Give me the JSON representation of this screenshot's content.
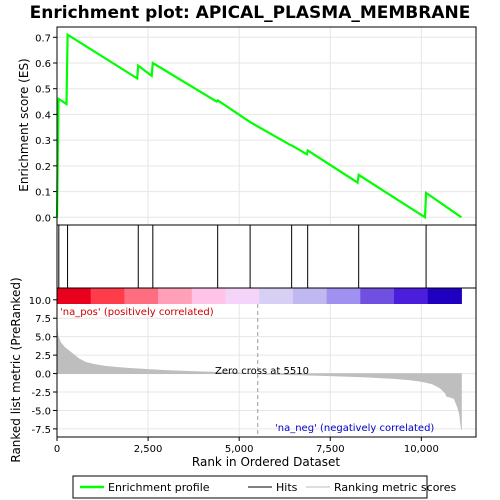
{
  "chart_data": {
    "type": "line",
    "title": "Enrichment plot: APICAL_PLASMA_MEMBRANE",
    "top_panel": {
      "ylabel": "Enrichment score (ES)",
      "ylim": [
        -0.03,
        0.74
      ],
      "yticks": [
        "0.0",
        "0.1",
        "0.2",
        "0.3",
        "0.4",
        "0.5",
        "0.6",
        "0.7"
      ],
      "series": [
        {
          "name": "Enrichment profile",
          "color": "#00ff00",
          "x": [
            0,
            40,
            50,
            260,
            290,
            2200,
            2230,
            2600,
            2630,
            4380,
            4410,
            5300,
            6420,
            6440,
            6860,
            6880,
            8250,
            8280,
            10100,
            10130,
            11100
          ],
          "y": [
            0.0,
            0.45,
            0.46,
            0.44,
            0.71,
            0.54,
            0.59,
            0.55,
            0.6,
            0.45,
            0.455,
            0.37,
            0.28,
            0.28,
            0.245,
            0.26,
            0.135,
            0.165,
            0.0,
            0.095,
            0.0
          ]
        }
      ]
    },
    "hits": {
      "name": "Hits",
      "color": "#000000",
      "x": [
        50,
        290,
        2230,
        2630,
        4410,
        5300,
        6440,
        6880,
        8280,
        10130
      ]
    },
    "bottom_panel": {
      "ylabel": "Ranked list metric (PreRanked)",
      "xlabel": "Rank in Ordered Dataset",
      "ylim": [
        -8.6,
        11.6
      ],
      "yticks": [
        "10.0",
        "7.5",
        "5.0",
        "2.5",
        "0.0",
        "-2.5",
        "-5.0",
        "-7.5"
      ],
      "xticks": [
        "0",
        "2,500",
        "5,000",
        "7,500",
        "10,000"
      ],
      "xlim": [
        0,
        11500
      ],
      "n_genes": 11100,
      "zero_cross": 5510,
      "zero_cross_label": "Zero cross at 5510",
      "pos_label": "'na_pos' (positively correlated)",
      "neg_label": "'na_neg' (negatively correlated)",
      "metric_series": {
        "name": "Ranking metric scores",
        "color": "#bebebe",
        "x": [
          0,
          30,
          100,
          200,
          300,
          400,
          600,
          800,
          1000,
          1300,
          1600,
          2000,
          2500,
          3000,
          3600,
          4200,
          4800,
          5300,
          5510,
          6000,
          6800,
          7600,
          8400,
          9200,
          9700,
          10000,
          10300,
          10500,
          10650,
          10700,
          10800,
          10900,
          11000,
          11050,
          11100
        ],
        "y": [
          6.2,
          5.0,
          4.2,
          3.6,
          3.2,
          2.8,
          2.0,
          1.5,
          1.25,
          1.0,
          0.85,
          0.7,
          0.55,
          0.42,
          0.3,
          0.2,
          0.1,
          0.03,
          0.0,
          -0.1,
          -0.2,
          -0.32,
          -0.45,
          -0.65,
          -0.85,
          -1.05,
          -1.4,
          -1.9,
          -2.6,
          -3.1,
          -3.2,
          -3.4,
          -4.6,
          -5.5,
          -7.6
        ]
      },
      "color_strip": [
        "#e8001c",
        "#ff3c4a",
        "#ff6e80",
        "#ffa0b8",
        "#ffc4e8",
        "#f4d4f8",
        "#d8d0f4",
        "#c0b8f0",
        "#a090f0",
        "#7050e0",
        "#4a1edc",
        "#2000c0"
      ]
    },
    "legend": {
      "items": [
        {
          "label": "Enrichment profile",
          "color": "#00ff00"
        },
        {
          "label": "Hits",
          "color": "#000000"
        },
        {
          "label": "Ranking metric scores",
          "color": "#bebebe"
        }
      ]
    }
  }
}
